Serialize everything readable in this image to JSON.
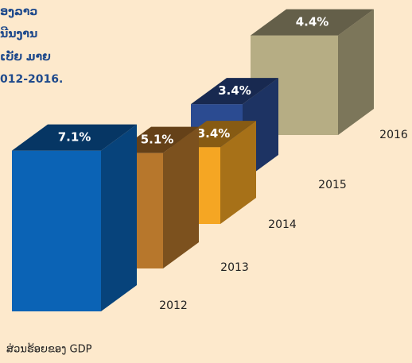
{
  "chart_data": {
    "type": "bar3d",
    "title_lines": [
      "ອງລາວ",
      "ນີນງານ",
      "ເບັຍ ມາຍ",
      "012-2016."
    ],
    "source": "ສ່ວນຮ້ອຍຂອງ GDP",
    "categories": [
      "2012",
      "2013",
      "2014",
      "2015",
      "2016"
    ],
    "values": [
      7.1,
      5.1,
      3.4,
      3.4,
      4.4
    ],
    "value_labels": [
      "7.1%",
      "5.1%",
      "3.4%",
      "3.4%",
      "4.4%"
    ],
    "colors": [
      "#0b63b5",
      "#b7772c",
      "#f5a623",
      "#2b4b91",
      "#b6ad84"
    ]
  }
}
